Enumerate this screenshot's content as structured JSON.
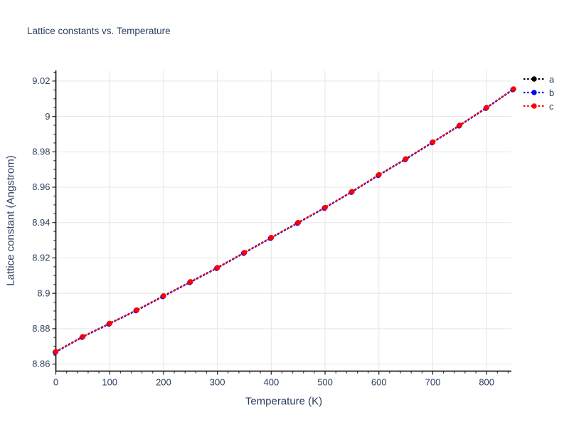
{
  "title": "Lattice constants vs. Temperature",
  "xlabel": "Temperature (K)",
  "ylabel": "Lattice constant (Angstrom)",
  "legend": {
    "position": "top-right-outside",
    "entries": [
      {
        "label": "a",
        "color": "#000000"
      },
      {
        "label": "b",
        "color": "#0000ff"
      },
      {
        "label": "c",
        "color": "#ff0000"
      }
    ]
  },
  "colors": {
    "text": "#2a3f5f",
    "grid": "#e5e5e5",
    "axis": "#222222",
    "background": "#ffffff"
  },
  "chart_data": {
    "type": "line",
    "title": "Lattice constants vs. Temperature",
    "xlabel": "Temperature (K)",
    "ylabel": "Lattice constant (Angstrom)",
    "line_style": "dotted",
    "marker": "circle",
    "grid": true,
    "legend_position": "top-right-outside",
    "x": [
      0,
      50,
      100,
      150,
      200,
      250,
      300,
      350,
      400,
      450,
      500,
      550,
      600,
      650,
      700,
      750,
      800,
      850
    ],
    "series": [
      {
        "name": "a",
        "color": "#000000",
        "values": [
          8.867,
          8.8755,
          8.883,
          8.8905,
          8.8985,
          8.9065,
          8.9145,
          8.923,
          8.9315,
          8.94,
          8.9485,
          8.9575,
          8.967,
          8.976,
          8.9855,
          8.995,
          9.005,
          9.0155
        ]
      },
      {
        "name": "b",
        "color": "#0000ff",
        "values": [
          8.867,
          8.8755,
          8.883,
          8.8905,
          8.8985,
          8.9065,
          8.9145,
          8.923,
          8.9315,
          8.94,
          8.9485,
          8.9575,
          8.967,
          8.976,
          8.9855,
          8.995,
          9.005,
          9.0155
        ]
      },
      {
        "name": "c",
        "color": "#ff0000",
        "values": [
          8.867,
          8.8755,
          8.883,
          8.8905,
          8.8985,
          8.9065,
          8.9145,
          8.923,
          8.9315,
          8.94,
          8.9485,
          8.9575,
          8.967,
          8.976,
          8.9855,
          8.995,
          9.005,
          9.0155
        ]
      }
    ],
    "xlim": [
      0,
      846
    ],
    "ylim": [
      8.856,
      9.026
    ],
    "xticks": {
      "values": [
        0,
        100,
        200,
        300,
        400,
        500,
        600,
        700,
        800
      ],
      "labels": [
        "0",
        "100",
        "200",
        "300",
        "400",
        "500",
        "600",
        "700",
        "800"
      ],
      "minor_step": 20
    },
    "yticks": {
      "values": [
        8.86,
        8.88,
        8.9,
        8.92,
        8.94,
        8.96,
        8.98,
        9.0,
        9.02
      ],
      "labels": [
        "8.86",
        "8.88",
        "8.9",
        "8.92",
        "8.94",
        "8.96",
        "8.98",
        "9",
        "9.02"
      ],
      "minor_step": 0.005
    }
  }
}
